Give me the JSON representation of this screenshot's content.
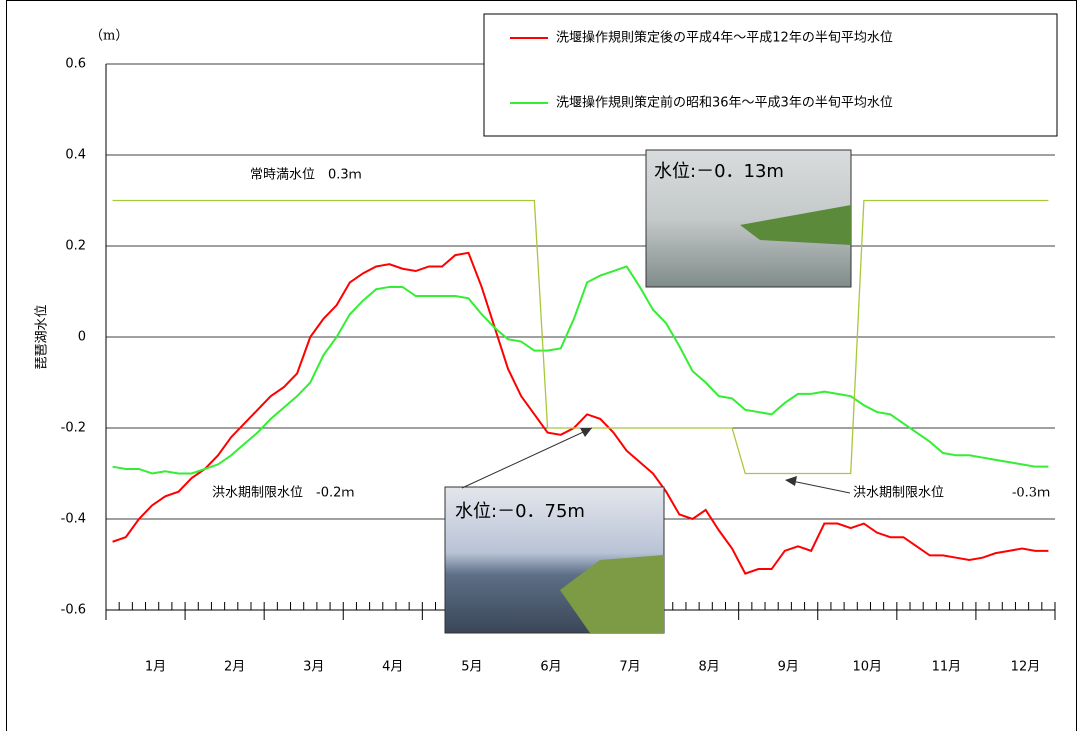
{
  "chart_data": {
    "type": "line",
    "y_label": "琵琶湖水位",
    "y_unit": "（m）",
    "ylim": [
      -0.6,
      0.6
    ],
    "yticks": [
      -0.6,
      -0.4,
      -0.2,
      0,
      0.2,
      0.4,
      0.6
    ],
    "grid": true,
    "categories": [
      null,
      null,
      null,
      "1月",
      null,
      null,
      null,
      null,
      null,
      "2月",
      null,
      null,
      null,
      null,
      null,
      "3月",
      null,
      null,
      null,
      null,
      null,
      "4月",
      null,
      null,
      null,
      null,
      null,
      "5月",
      null,
      null,
      null,
      null,
      null,
      "6月",
      null,
      null,
      null,
      null,
      null,
      "7月",
      null,
      null,
      null,
      null,
      null,
      "8月",
      null,
      null,
      null,
      null,
      null,
      "9月",
      null,
      null,
      null,
      null,
      null,
      "10月",
      null,
      null,
      null,
      null,
      null,
      "11月",
      null,
      null,
      null,
      null,
      null,
      "12月",
      null,
      null
    ],
    "series": [
      {
        "name": "洗堰操作規則策定後の平成4年～平成12年の半旬平均水位",
        "color": "#ff0000",
        "values": [
          -0.45,
          -0.44,
          -0.4,
          -0.37,
          -0.35,
          -0.34,
          -0.31,
          -0.29,
          -0.26,
          -0.22,
          -0.19,
          -0.16,
          -0.13,
          -0.11,
          -0.08,
          0.0,
          0.04,
          0.07,
          0.12,
          0.14,
          0.155,
          0.16,
          0.15,
          0.145,
          0.155,
          0.155,
          0.18,
          0.185,
          0.11,
          0.02,
          -0.07,
          -0.13,
          -0.17,
          -0.21,
          -0.215,
          -0.2,
          -0.17,
          -0.18,
          -0.21,
          -0.25,
          -0.275,
          -0.3,
          -0.34,
          -0.39,
          -0.4,
          -0.38,
          -0.425,
          -0.465,
          -0.52,
          -0.51,
          -0.51,
          -0.47,
          -0.46,
          -0.47,
          -0.41,
          -0.41,
          -0.42,
          -0.41,
          -0.43,
          -0.44,
          -0.44,
          -0.46,
          -0.48,
          -0.48,
          -0.485,
          -0.49,
          -0.485,
          -0.475,
          -0.47,
          -0.465,
          -0.47,
          -0.47
        ]
      },
      {
        "name": "洗堰操作規則策定前の昭和36年～平成3年の半旬平均水位",
        "color": "#33ee33",
        "values": [
          -0.285,
          -0.29,
          -0.29,
          -0.3,
          -0.295,
          -0.3,
          -0.3,
          -0.29,
          -0.28,
          -0.26,
          -0.235,
          -0.21,
          -0.18,
          -0.155,
          -0.13,
          -0.1,
          -0.04,
          0.0,
          0.05,
          0.08,
          0.105,
          0.11,
          0.11,
          0.09,
          0.09,
          0.09,
          0.09,
          0.085,
          0.05,
          0.02,
          -0.005,
          -0.01,
          -0.03,
          -0.03,
          -0.025,
          0.04,
          0.12,
          0.135,
          0.145,
          0.155,
          0.11,
          0.06,
          0.03,
          -0.02,
          -0.075,
          -0.1,
          -0.13,
          -0.135,
          -0.16,
          -0.165,
          -0.17,
          -0.145,
          -0.125,
          -0.125,
          -0.12,
          -0.125,
          -0.13,
          -0.15,
          -0.165,
          -0.17,
          -0.19,
          -0.21,
          -0.23,
          -0.255,
          -0.26,
          -0.26,
          -0.265,
          -0.27,
          -0.275,
          -0.28,
          -0.285,
          -0.285
        ]
      },
      {
        "color": "#a8c83c",
        "values": [
          0.3,
          0.3,
          0.3,
          0.3,
          0.3,
          0.3,
          0.3,
          0.3,
          0.3,
          0.3,
          0.3,
          0.3,
          0.3,
          0.3,
          0.3,
          0.3,
          0.3,
          0.3,
          0.3,
          0.3,
          0.3,
          0.3,
          0.3,
          0.3,
          0.3,
          0.3,
          0.3,
          0.3,
          0.3,
          0.3,
          0.3,
          0.3,
          0.3,
          -0.2,
          -0.2,
          -0.2,
          -0.2,
          -0.2,
          -0.2,
          -0.2,
          -0.2,
          -0.2,
          -0.2,
          -0.2,
          -0.2,
          -0.2,
          -0.2,
          -0.2,
          -0.3,
          -0.3,
          -0.3,
          -0.3,
          -0.3,
          -0.3,
          -0.3,
          -0.3,
          -0.3,
          0.3,
          0.3,
          0.3,
          0.3,
          0.3,
          0.3,
          0.3,
          0.3,
          0.3,
          0.3,
          0.3,
          0.3,
          0.3,
          0.3,
          0.3
        ]
      }
    ],
    "annotations": [
      "常時満水位　0.3ｍ",
      "洪水期制限水位　-0.2ｍ",
      "洪水期制限水位",
      "-0.3ｍ"
    ],
    "photo_captions": [
      "水位:－0．13m",
      "水位:－0．75m"
    ]
  }
}
